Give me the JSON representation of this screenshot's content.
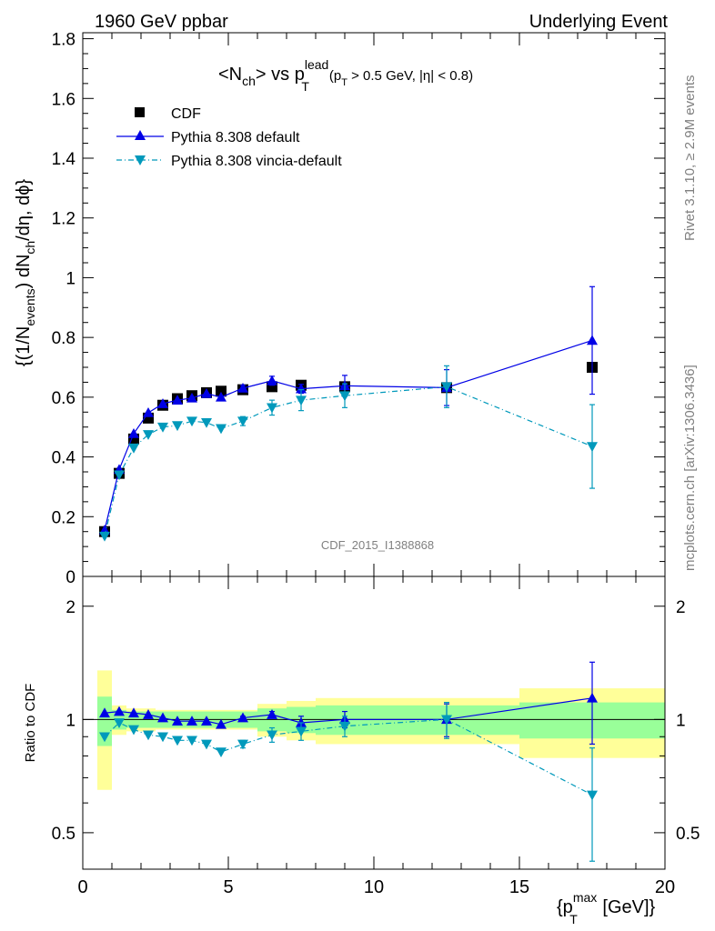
{
  "header": {
    "left": "1960 GeV ppbar",
    "right": "Underlying Event"
  },
  "side_text": {
    "rivet": "Rivet 3.1.10, ≥ 2.9M events",
    "mcplots": "mcplots.cern.ch [arXiv:1306.3436]"
  },
  "watermark": "CDF_2015_I1388868",
  "title": {
    "main": "<N",
    "main_sub": "ch",
    "main_mid": "> vs p",
    "main_sup": "lead",
    "main_sub2": "T",
    "cut": "(p",
    "cut_sub": "T",
    "cut_rest": " > 0.5 GeV, |η| < 0.8)"
  },
  "ylabel_main": {
    "p1": "{(1/N",
    "p1_sub": "events",
    "p2": ") dN",
    "p2_sub": "ch",
    "p3": "/dη, dϕ}"
  },
  "ylabel_ratio": "Ratio to CDF",
  "xlabel": {
    "p1": "{p",
    "p1_sup": "max",
    "p1_sub": "T",
    "p2": " [GeV]}"
  },
  "legend": {
    "cdf": "CDF",
    "default": "Pythia 8.308 default",
    "vincia": "Pythia 8.308 vincia-default"
  },
  "colors": {
    "cdf": "#000000",
    "default": "#0000e6",
    "vincia": "#0099bb",
    "band_inner": "#99ff99",
    "band_outer": "#ffff99"
  },
  "axes": {
    "x_ticks": [
      "0",
      "5",
      "10",
      "15",
      "20"
    ],
    "y_main_ticks": [
      "0",
      "0.2",
      "0.4",
      "0.6",
      "0.8",
      "1",
      "1.2",
      "1.4",
      "1.6",
      "1.8"
    ],
    "y_ratio_ticks_left": [
      "0.5",
      "1",
      "2"
    ],
    "y_ratio_ticks_right": [
      "0.5",
      "1",
      "2"
    ]
  },
  "chart_data": {
    "type": "scatter",
    "x_range": [
      0,
      20
    ],
    "y_range_main": [
      0,
      1.82
    ],
    "y_range_ratio": [
      0.4,
      2.4
    ],
    "ratio_scale": "log",
    "legend_position": "top-left",
    "series": [
      {
        "name": "CDF",
        "marker": "square",
        "x": [
          0.75,
          1.25,
          1.75,
          2.25,
          2.75,
          3.25,
          3.75,
          4.25,
          4.75,
          5.5,
          6.5,
          7.5,
          9.0,
          12.5,
          17.5
        ],
        "y": [
          0.15,
          0.345,
          0.46,
          0.53,
          0.573,
          0.595,
          0.605,
          0.615,
          0.62,
          0.625,
          0.635,
          0.64,
          0.635,
          0.632,
          0.7
        ],
        "band_inner": [
          1.15,
          1.06,
          1.05,
          1.05,
          1.05,
          1.05,
          1.05,
          1.05,
          1.05,
          1.05,
          1.07,
          1.08,
          1.09,
          1.09,
          1.11
        ],
        "band_outer": [
          1.35,
          1.09,
          1.07,
          1.07,
          1.06,
          1.06,
          1.06,
          1.06,
          1.06,
          1.06,
          1.1,
          1.12,
          1.14,
          1.14,
          1.21
        ],
        "x_edges": [
          0.5,
          1.0,
          1.5,
          2.0,
          2.5,
          3.0,
          3.5,
          4.0,
          4.5,
          5.0,
          6.0,
          7.0,
          8.0,
          10.0,
          15.0,
          20.0
        ]
      },
      {
        "name": "Pythia 8.308 default",
        "marker": "triangle-up",
        "line": "solid",
        "x": [
          0.75,
          1.25,
          1.75,
          2.25,
          2.75,
          3.25,
          3.75,
          4.25,
          4.75,
          5.5,
          6.5,
          7.5,
          9.0,
          12.5,
          17.5
        ],
        "y": [
          0.155,
          0.358,
          0.478,
          0.548,
          0.578,
          0.59,
          0.597,
          0.612,
          0.6,
          0.63,
          0.655,
          0.628,
          0.638,
          0.632,
          0.79
        ],
        "yerr": [
          0,
          0,
          0,
          0,
          0,
          0,
          0,
          0,
          0,
          0.01,
          0.015,
          0.015,
          0.035,
          0.06,
          0.18
        ],
        "ratio": [
          1.04,
          1.05,
          1.04,
          1.03,
          1.01,
          0.99,
          0.99,
          0.99,
          0.97,
          1.01,
          1.03,
          0.98,
          1.0,
          1.0,
          1.14
        ],
        "ratio_err": [
          0,
          0,
          0,
          0,
          0,
          0,
          0,
          0,
          0,
          0.01,
          0.02,
          0.04,
          0.05,
          0.1,
          0.28
        ]
      },
      {
        "name": "Pythia 8.308 vincia-default",
        "marker": "triangle-down",
        "line": "dashdot",
        "x": [
          0.75,
          1.25,
          1.75,
          2.25,
          2.75,
          3.25,
          3.75,
          4.25,
          4.75,
          5.5,
          6.5,
          7.5,
          9.0,
          12.5,
          17.5
        ],
        "y": [
          0.135,
          0.34,
          0.43,
          0.475,
          0.5,
          0.505,
          0.52,
          0.515,
          0.495,
          0.52,
          0.565,
          0.59,
          0.605,
          0.635,
          0.435
        ],
        "yerr": [
          0,
          0,
          0,
          0,
          0,
          0,
          0,
          0,
          0,
          0.015,
          0.025,
          0.035,
          0.04,
          0.07,
          0.14
        ],
        "ratio": [
          0.9,
          0.98,
          0.94,
          0.91,
          0.9,
          0.88,
          0.88,
          0.86,
          0.82,
          0.86,
          0.91,
          0.93,
          0.96,
          1.0,
          0.63
        ],
        "ratio_err": [
          0,
          0,
          0,
          0,
          0,
          0,
          0,
          0,
          0,
          0.02,
          0.04,
          0.05,
          0.06,
          0.11,
          0.21
        ]
      }
    ]
  }
}
